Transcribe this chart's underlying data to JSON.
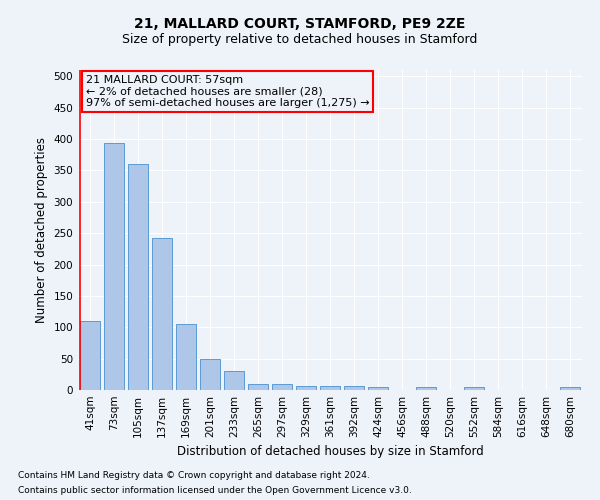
{
  "title": "21, MALLARD COURT, STAMFORD, PE9 2ZE",
  "subtitle": "Size of property relative to detached houses in Stamford",
  "xlabel": "Distribution of detached houses by size in Stamford",
  "ylabel": "Number of detached properties",
  "bar_labels": [
    "41sqm",
    "73sqm",
    "105sqm",
    "137sqm",
    "169sqm",
    "201sqm",
    "233sqm",
    "265sqm",
    "297sqm",
    "329sqm",
    "361sqm",
    "392sqm",
    "424sqm",
    "456sqm",
    "488sqm",
    "520sqm",
    "552sqm",
    "584sqm",
    "616sqm",
    "648sqm",
    "680sqm"
  ],
  "bar_values": [
    110,
    393,
    360,
    243,
    105,
    50,
    30,
    10,
    10,
    6,
    6,
    6,
    4,
    0,
    4,
    0,
    4,
    0,
    0,
    0,
    4
  ],
  "bar_color": "#aec6e8",
  "bar_edge_color": "#5b9bd5",
  "annotation_line1": "21 MALLARD COURT: 57sqm",
  "annotation_line2": "← 2% of detached houses are smaller (28)",
  "annotation_line3": "97% of semi-detached houses are larger (1,275) →",
  "ylim": [
    0,
    510
  ],
  "yticks": [
    0,
    50,
    100,
    150,
    200,
    250,
    300,
    350,
    400,
    450,
    500
  ],
  "footnote1": "Contains HM Land Registry data © Crown copyright and database right 2024.",
  "footnote2": "Contains public sector information licensed under the Open Government Licence v3.0.",
  "bg_color": "#eef2f9",
  "grid_color": "#ffffff",
  "title_fontsize": 10,
  "subtitle_fontsize": 9,
  "label_fontsize": 8.5,
  "tick_fontsize": 7.5,
  "annot_fontsize": 8,
  "footnote_fontsize": 6.5
}
